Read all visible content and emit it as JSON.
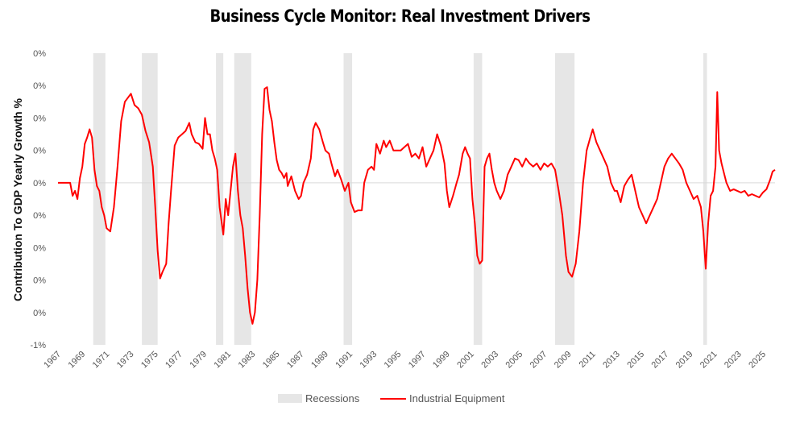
{
  "chart_data": {
    "type": "line",
    "title": "Business Cycle Monitor: Real Investment Drivers",
    "ylabel": "Contribution To GDP Yearly Growth %",
    "xlabel": "",
    "y_tick_labels": [
      "0%",
      "0%",
      "0%",
      "0%",
      "0%",
      "0%",
      "0%",
      "0%",
      "0%",
      "-1%"
    ],
    "ylim": [
      -1.0,
      0.8
    ],
    "x_tick_labels": [
      "1967",
      "1969",
      "1971",
      "1973",
      "1975",
      "1977",
      "1979",
      "1981",
      "1983",
      "1985",
      "1987",
      "1989",
      "1991",
      "1993",
      "1995",
      "1997",
      "1999",
      "2001",
      "2003",
      "2005",
      "2007",
      "2009",
      "2011",
      "2013",
      "2015",
      "2017",
      "2019",
      "2021",
      "2023",
      "2025"
    ],
    "xlim": [
      1967.0,
      2026.0
    ],
    "zero_line": true,
    "legend": [
      "Recessions",
      "Industrial Equipment"
    ],
    "legend_position": "bottom-center",
    "colors": {
      "line": "#ff0000",
      "recession": "#e6e6e6",
      "zero": "#d9d9d9"
    },
    "recessions": [
      [
        1969.9,
        1970.9
      ],
      [
        1973.9,
        1975.2
      ],
      [
        1980.0,
        1980.6
      ],
      [
        1981.5,
        1982.9
      ],
      [
        1990.5,
        1991.2
      ],
      [
        2001.2,
        2001.9
      ],
      [
        2007.9,
        2009.5
      ],
      [
        2020.1,
        2020.4
      ]
    ],
    "series": [
      {
        "name": "Industrial Equipment",
        "points": [
          [
            1967.0,
            0.0
          ],
          [
            1967.6,
            0.0
          ],
          [
            1968.0,
            0.0
          ],
          [
            1968.2,
            -0.08
          ],
          [
            1968.4,
            -0.05
          ],
          [
            1968.6,
            -0.1
          ],
          [
            1968.8,
            0.03
          ],
          [
            1969.0,
            0.1
          ],
          [
            1969.2,
            0.24
          ],
          [
            1969.4,
            0.28
          ],
          [
            1969.6,
            0.33
          ],
          [
            1969.8,
            0.28
          ],
          [
            1970.0,
            0.08
          ],
          [
            1970.2,
            -0.02
          ],
          [
            1970.4,
            -0.05
          ],
          [
            1970.6,
            -0.15
          ],
          [
            1970.8,
            -0.2
          ],
          [
            1971.0,
            -0.28
          ],
          [
            1971.3,
            -0.3
          ],
          [
            1971.6,
            -0.15
          ],
          [
            1971.9,
            0.1
          ],
          [
            1972.2,
            0.38
          ],
          [
            1972.5,
            0.5
          ],
          [
            1972.8,
            0.53
          ],
          [
            1973.0,
            0.55
          ],
          [
            1973.3,
            0.48
          ],
          [
            1973.6,
            0.46
          ],
          [
            1973.9,
            0.42
          ],
          [
            1974.2,
            0.32
          ],
          [
            1974.5,
            0.25
          ],
          [
            1974.8,
            0.1
          ],
          [
            1975.0,
            -0.15
          ],
          [
            1975.2,
            -0.42
          ],
          [
            1975.4,
            -0.59
          ],
          [
            1975.6,
            -0.55
          ],
          [
            1975.9,
            -0.5
          ],
          [
            1976.1,
            -0.25
          ],
          [
            1976.3,
            -0.05
          ],
          [
            1976.6,
            0.23
          ],
          [
            1976.9,
            0.28
          ],
          [
            1977.2,
            0.3
          ],
          [
            1977.5,
            0.32
          ],
          [
            1977.8,
            0.37
          ],
          [
            1978.0,
            0.3
          ],
          [
            1978.3,
            0.25
          ],
          [
            1978.6,
            0.24
          ],
          [
            1978.9,
            0.21
          ],
          [
            1979.1,
            0.4
          ],
          [
            1979.3,
            0.3
          ],
          [
            1979.5,
            0.3
          ],
          [
            1979.7,
            0.2
          ],
          [
            1979.9,
            0.15
          ],
          [
            1980.1,
            0.08
          ],
          [
            1980.3,
            -0.15
          ],
          [
            1980.6,
            -0.32
          ],
          [
            1980.8,
            -0.1
          ],
          [
            1981.0,
            -0.2
          ],
          [
            1981.2,
            -0.05
          ],
          [
            1981.4,
            0.1
          ],
          [
            1981.6,
            0.18
          ],
          [
            1981.8,
            -0.05
          ],
          [
            1982.0,
            -0.2
          ],
          [
            1982.2,
            -0.28
          ],
          [
            1982.4,
            -0.45
          ],
          [
            1982.6,
            -0.65
          ],
          [
            1982.8,
            -0.8
          ],
          [
            1983.0,
            -0.87
          ],
          [
            1983.2,
            -0.8
          ],
          [
            1983.4,
            -0.6
          ],
          [
            1983.6,
            -0.2
          ],
          [
            1983.8,
            0.3
          ],
          [
            1984.0,
            0.58
          ],
          [
            1984.2,
            0.59
          ],
          [
            1984.4,
            0.45
          ],
          [
            1984.6,
            0.38
          ],
          [
            1984.8,
            0.25
          ],
          [
            1985.0,
            0.14
          ],
          [
            1985.2,
            0.08
          ],
          [
            1985.4,
            0.06
          ],
          [
            1985.6,
            0.03
          ],
          [
            1985.8,
            0.06
          ],
          [
            1985.9,
            -0.02
          ],
          [
            1986.2,
            0.04
          ],
          [
            1986.5,
            -0.05
          ],
          [
            1986.8,
            -0.1
          ],
          [
            1987.0,
            -0.08
          ],
          [
            1987.2,
            0.0
          ],
          [
            1987.5,
            0.05
          ],
          [
            1987.8,
            0.15
          ],
          [
            1988.0,
            0.33
          ],
          [
            1988.2,
            0.37
          ],
          [
            1988.5,
            0.33
          ],
          [
            1988.8,
            0.25
          ],
          [
            1989.0,
            0.2
          ],
          [
            1989.3,
            0.18
          ],
          [
            1989.5,
            0.12
          ],
          [
            1989.8,
            0.04
          ],
          [
            1990.0,
            0.08
          ],
          [
            1990.3,
            0.02
          ],
          [
            1990.6,
            -0.05
          ],
          [
            1990.9,
            0.0
          ],
          [
            1991.1,
            -0.12
          ],
          [
            1991.4,
            -0.18
          ],
          [
            1991.7,
            -0.17
          ],
          [
            1992.0,
            -0.17
          ],
          [
            1992.2,
            0.0
          ],
          [
            1992.5,
            0.08
          ],
          [
            1992.8,
            0.1
          ],
          [
            1993.0,
            0.08
          ],
          [
            1993.2,
            0.24
          ],
          [
            1993.5,
            0.18
          ],
          [
            1993.8,
            0.26
          ],
          [
            1994.0,
            0.22
          ],
          [
            1994.3,
            0.26
          ],
          [
            1994.6,
            0.2
          ],
          [
            1994.9,
            0.2
          ],
          [
            1995.2,
            0.2
          ],
          [
            1995.5,
            0.22
          ],
          [
            1995.8,
            0.24
          ],
          [
            1996.1,
            0.16
          ],
          [
            1996.4,
            0.18
          ],
          [
            1996.7,
            0.15
          ],
          [
            1997.0,
            0.22
          ],
          [
            1997.3,
            0.1
          ],
          [
            1997.6,
            0.15
          ],
          [
            1997.9,
            0.2
          ],
          [
            1998.2,
            0.3
          ],
          [
            1998.5,
            0.23
          ],
          [
            1998.8,
            0.12
          ],
          [
            1999.0,
            -0.05
          ],
          [
            1999.2,
            -0.15
          ],
          [
            1999.5,
            -0.08
          ],
          [
            1999.8,
            0.0
          ],
          [
            2000.0,
            0.05
          ],
          [
            2000.3,
            0.18
          ],
          [
            2000.5,
            0.22
          ],
          [
            2000.7,
            0.18
          ],
          [
            2000.9,
            0.15
          ],
          [
            2001.1,
            -0.1
          ],
          [
            2001.3,
            -0.25
          ],
          [
            2001.5,
            -0.45
          ],
          [
            2001.7,
            -0.5
          ],
          [
            2001.9,
            -0.48
          ],
          [
            2002.1,
            0.1
          ],
          [
            2002.3,
            0.15
          ],
          [
            2002.5,
            0.18
          ],
          [
            2002.7,
            0.08
          ],
          [
            2002.9,
            0.0
          ],
          [
            2003.1,
            -0.05
          ],
          [
            2003.4,
            -0.1
          ],
          [
            2003.7,
            -0.05
          ],
          [
            2004.0,
            0.05
          ],
          [
            2004.3,
            0.1
          ],
          [
            2004.6,
            0.15
          ],
          [
            2004.9,
            0.14
          ],
          [
            2005.2,
            0.1
          ],
          [
            2005.5,
            0.15
          ],
          [
            2005.8,
            0.12
          ],
          [
            2006.1,
            0.1
          ],
          [
            2006.4,
            0.12
          ],
          [
            2006.7,
            0.08
          ],
          [
            2007.0,
            0.12
          ],
          [
            2007.3,
            0.1
          ],
          [
            2007.6,
            0.12
          ],
          [
            2007.9,
            0.08
          ],
          [
            2008.2,
            -0.05
          ],
          [
            2008.5,
            -0.2
          ],
          [
            2008.8,
            -0.45
          ],
          [
            2009.0,
            -0.55
          ],
          [
            2009.3,
            -0.58
          ],
          [
            2009.6,
            -0.5
          ],
          [
            2009.9,
            -0.3
          ],
          [
            2010.2,
            0.0
          ],
          [
            2010.5,
            0.2
          ],
          [
            2010.8,
            0.28
          ],
          [
            2011.0,
            0.33
          ],
          [
            2011.3,
            0.25
          ],
          [
            2011.6,
            0.2
          ],
          [
            2011.9,
            0.15
          ],
          [
            2012.2,
            0.1
          ],
          [
            2012.5,
            0.0
          ],
          [
            2012.8,
            -0.05
          ],
          [
            2013.0,
            -0.05
          ],
          [
            2013.3,
            -0.12
          ],
          [
            2013.6,
            -0.02
          ],
          [
            2013.9,
            0.02
          ],
          [
            2014.2,
            0.05
          ],
          [
            2014.5,
            -0.05
          ],
          [
            2014.8,
            -0.15
          ],
          [
            2015.1,
            -0.2
          ],
          [
            2015.4,
            -0.25
          ],
          [
            2015.7,
            -0.2
          ],
          [
            2016.0,
            -0.15
          ],
          [
            2016.3,
            -0.1
          ],
          [
            2016.6,
            0.0
          ],
          [
            2016.9,
            0.1
          ],
          [
            2017.2,
            0.15
          ],
          [
            2017.5,
            0.18
          ],
          [
            2017.8,
            0.15
          ],
          [
            2018.1,
            0.12
          ],
          [
            2018.4,
            0.08
          ],
          [
            2018.7,
            0.0
          ],
          [
            2019.0,
            -0.05
          ],
          [
            2019.3,
            -0.1
          ],
          [
            2019.6,
            -0.08
          ],
          [
            2019.9,
            -0.15
          ],
          [
            2020.1,
            -0.3
          ],
          [
            2020.3,
            -0.53
          ],
          [
            2020.5,
            -0.25
          ],
          [
            2020.7,
            -0.08
          ],
          [
            2020.9,
            -0.05
          ],
          [
            2021.1,
            0.1
          ],
          [
            2021.25,
            0.56
          ],
          [
            2021.4,
            0.2
          ],
          [
            2021.6,
            0.12
          ],
          [
            2021.8,
            0.06
          ],
          [
            2022.0,
            0.0
          ],
          [
            2022.3,
            -0.05
          ],
          [
            2022.6,
            -0.04
          ],
          [
            2022.9,
            -0.05
          ],
          [
            2023.2,
            -0.06
          ],
          [
            2023.5,
            -0.05
          ],
          [
            2023.8,
            -0.08
          ],
          [
            2024.1,
            -0.07
          ],
          [
            2024.4,
            -0.08
          ],
          [
            2024.7,
            -0.09
          ],
          [
            2025.0,
            -0.06
          ],
          [
            2025.3,
            -0.04
          ],
          [
            2025.6,
            0.02
          ],
          [
            2025.8,
            0.07
          ],
          [
            2026.0,
            0.08
          ]
        ]
      }
    ]
  }
}
